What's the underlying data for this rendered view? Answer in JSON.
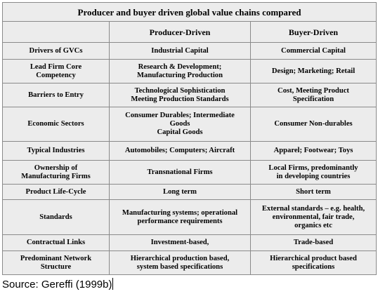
{
  "table": {
    "title": "Producer and buyer driven global value chains compared",
    "columns": [
      "",
      "Producer-Driven",
      "Buyer-Driven"
    ],
    "rows": [
      {
        "label": "Drivers of GVCs",
        "producer": "Industrial Capital",
        "buyer": "Commercial Capital"
      },
      {
        "label": "Lead Firm Core\nCompetency",
        "producer": "Research & Development;\nManufacturing Production",
        "buyer": "Design; Marketing; Retail"
      },
      {
        "label": "Barriers to Entry",
        "producer": "Technological Sophistication\nMeeting Production Standards",
        "buyer": "Cost, Meeting Product\nSpecification"
      },
      {
        "label": "Economic Sectors",
        "producer": "Consumer Durables; Intermediate\nGoods\nCapital Goods",
        "buyer": "Consumer Non-durables"
      },
      {
        "label": "Typical Industries",
        "producer": "Automobiles; Computers; Aircraft",
        "buyer": "Apparel; Footwear; Toys"
      },
      {
        "label": "Ownership of\nManufacturing Firms",
        "producer": "Transnational Firms",
        "buyer": "Local Firms, predominantly\nin developing countries"
      },
      {
        "label": "Product Life-Cycle",
        "producer": "Long term",
        "buyer": "Short term"
      },
      {
        "label": "Standards",
        "producer": "Manufacturing systems; operational\nperformance requirements",
        "buyer": "External standards – e.g. health,\nenvironmental, fair trade,\norganics etc"
      },
      {
        "label": "Contractual Links",
        "producer": "Investment-based,",
        "buyer": "Trade-based"
      },
      {
        "label": "Predominant Network\nStructure",
        "producer": "Hierarchical production based,\nsystem based specifications",
        "buyer": "Hierarchical product based\nspecifications"
      }
    ]
  },
  "source": "Source: Gereffi (1999b)"
}
